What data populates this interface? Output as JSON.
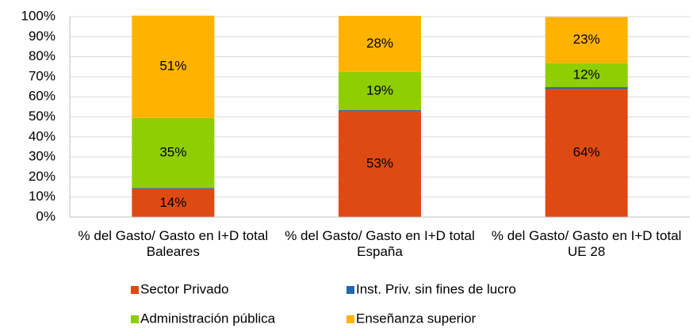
{
  "chart_data": {
    "type": "stacked_bar",
    "categories": [
      "% del Gasto/ Gasto en I+D total Baleares",
      "% del Gasto/ Gasto en I+D total España",
      "% del Gasto/ Gasto en I+D total UE 28"
    ],
    "series": [
      {
        "name": "Sector Privado",
        "color": "#dd4b12",
        "values": [
          14,
          53,
          64
        ],
        "value_labels": [
          "14%",
          "53%",
          "64%"
        ]
      },
      {
        "name": "Inst. Priv. sin fines de lucro",
        "color": "#2166ac",
        "values": [
          0.5,
          0.4,
          0.8
        ]
      },
      {
        "name": "Administración pública",
        "color": "#8fce00",
        "values": [
          35,
          19,
          12
        ],
        "value_labels": [
          "35%",
          "19%",
          "12%"
        ]
      },
      {
        "name": "Enseñanza superior",
        "color": "#ffb300",
        "values": [
          51,
          28,
          23
        ],
        "value_labels": [
          "51%",
          "28%",
          "23%"
        ]
      }
    ],
    "ylim": [
      0,
      100
    ],
    "yticks": [
      {
        "value": 0,
        "label": "0%"
      },
      {
        "value": 10,
        "label": "10%"
      },
      {
        "value": 20,
        "label": "20%"
      },
      {
        "value": 30,
        "label": "30%"
      },
      {
        "value": 40,
        "label": "40%"
      },
      {
        "value": 50,
        "label": "50%"
      },
      {
        "value": 60,
        "label": "60%"
      },
      {
        "value": 70,
        "label": "70%"
      },
      {
        "value": 80,
        "label": "80%"
      },
      {
        "value": 90,
        "label": "90%"
      },
      {
        "value": 100,
        "label": "100%"
      }
    ],
    "grid": true
  }
}
